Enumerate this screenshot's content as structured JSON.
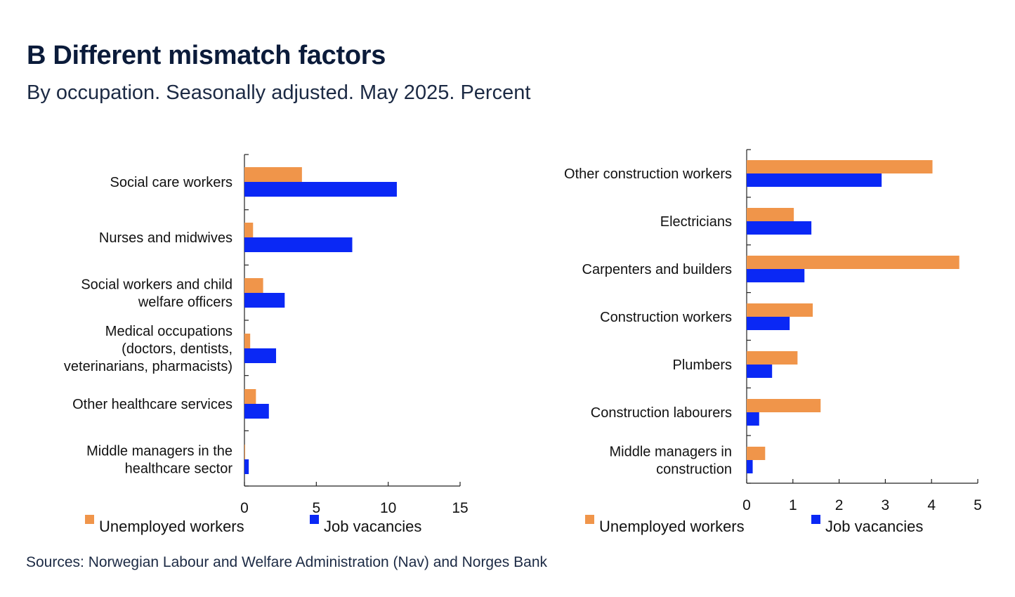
{
  "header": {
    "title": "B Different mismatch factors",
    "subtitle": "By occupation. Seasonally adjusted. May 2025. Percent"
  },
  "footer": {
    "source": "Sources: Norwegian Labour and Welfare Administration (Nav) and Norges Bank"
  },
  "colors": {
    "unemployed": "#f0954a",
    "vacancies": "#0a28f5",
    "axis": "#222222"
  },
  "chart_data": [
    {
      "type": "bar",
      "orientation": "horizontal",
      "categories": [
        [
          "Social care workers"
        ],
        [
          "Nurses and midwives"
        ],
        [
          "Social workers and child",
          "welfare officers"
        ],
        [
          "Medical occupations",
          "(doctors, dentists,",
          "veterinarians, pharmacists)"
        ],
        [
          "Other healthcare services"
        ],
        [
          "Middle managers in the",
          "healthcare sector"
        ]
      ],
      "series": [
        {
          "name": "Unemployed workers",
          "values": [
            4.0,
            0.6,
            1.3,
            0.4,
            0.8,
            0.05
          ]
        },
        {
          "name": "Job vacancies",
          "values": [
            10.6,
            7.5,
            2.8,
            2.2,
            1.7,
            0.3
          ]
        }
      ],
      "xlim": [
        0,
        15
      ],
      "xticks": [
        "0",
        "5",
        "10",
        "15"
      ],
      "legend": [
        "Unemployed workers",
        "Job vacancies"
      ]
    },
    {
      "type": "bar",
      "orientation": "horizontal",
      "categories": [
        [
          "Other construction workers"
        ],
        [
          "Electricians"
        ],
        [
          "Carpenters and builders"
        ],
        [
          "Construction workers"
        ],
        [
          "Plumbers"
        ],
        [
          "Construction labourers"
        ],
        [
          "Middle managers in",
          "construction"
        ]
      ],
      "series": [
        {
          "name": "Unemployed workers",
          "values": [
            4.02,
            1.02,
            4.6,
            1.43,
            1.1,
            1.6,
            0.4
          ]
        },
        {
          "name": "Job vacancies",
          "values": [
            2.92,
            1.4,
            1.25,
            0.93,
            0.55,
            0.27,
            0.13
          ]
        }
      ],
      "xlim": [
        0,
        5
      ],
      "xticks": [
        "0",
        "1",
        "2",
        "3",
        "4",
        "5"
      ],
      "legend": [
        "Unemployed workers",
        "Job vacancies"
      ]
    }
  ]
}
